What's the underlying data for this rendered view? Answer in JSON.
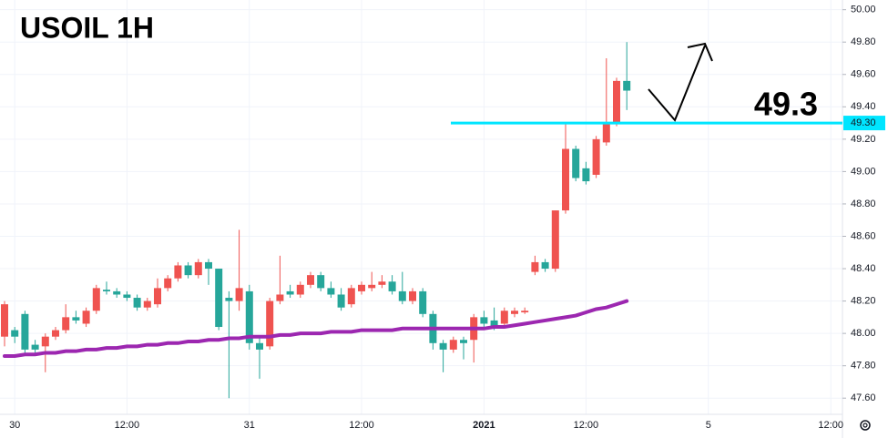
{
  "chart_data": {
    "type": "candlestick",
    "title": "USOIL 1H",
    "annotation": "49.3",
    "up_color": "#ef5350",
    "down_color": "#26a69a",
    "ma_color": "#9c27b0",
    "grid": true,
    "level": {
      "value": 49.3,
      "label": "49.30",
      "color": "#00e5ff"
    },
    "ylim": [
      47.5,
      50.06
    ],
    "yticks": [
      {
        "value": 47.6,
        "label": "47.60"
      },
      {
        "value": 47.8,
        "label": "47.80"
      },
      {
        "value": 48.0,
        "label": "48.00"
      },
      {
        "value": 48.2,
        "label": "48.20"
      },
      {
        "value": 48.4,
        "label": "48.40"
      },
      {
        "value": 48.6,
        "label": "48.60"
      },
      {
        "value": 48.8,
        "label": "48.80"
      },
      {
        "value": 49.0,
        "label": "49.00"
      },
      {
        "value": 49.2,
        "label": "49.20"
      },
      {
        "value": 49.4,
        "label": "49.40"
      },
      {
        "value": 49.6,
        "label": "49.60"
      },
      {
        "value": 49.8,
        "label": "49.80"
      },
      {
        "value": 50.0,
        "label": "50.00"
      }
    ],
    "categories": [
      null,
      "30",
      null,
      null,
      null,
      null,
      null,
      null,
      null,
      null,
      null,
      null,
      "12:00",
      null,
      null,
      null,
      null,
      null,
      null,
      null,
      null,
      null,
      null,
      null,
      "31",
      null,
      null,
      null,
      null,
      null,
      null,
      null,
      null,
      null,
      null,
      "12:00",
      null,
      null,
      null,
      null,
      null,
      null,
      null,
      null,
      null,
      null,
      null,
      "2021",
      null,
      null,
      null,
      null,
      null,
      null,
      null,
      null,
      null,
      "12:00",
      null,
      null,
      null,
      null,
      null,
      null,
      null,
      null,
      null,
      null,
      null,
      "5",
      null,
      null,
      null,
      null,
      null,
      null,
      null,
      null,
      null,
      null,
      null,
      "12:00"
    ],
    "ohlc": [
      [
        47.98,
        48.2,
        47.92,
        48.18
      ],
      [
        48.02,
        48.04,
        47.94,
        47.98
      ],
      [
        48.12,
        48.14,
        47.88,
        47.9
      ],
      [
        47.93,
        47.96,
        47.88,
        47.9
      ],
      [
        47.92,
        48.0,
        47.76,
        47.98
      ],
      [
        47.98,
        48.04,
        47.96,
        48.02
      ],
      [
        48.02,
        48.18,
        48.0,
        48.1
      ],
      [
        48.1,
        48.14,
        48.06,
        48.08
      ],
      [
        48.06,
        48.16,
        48.04,
        48.14
      ],
      [
        48.14,
        48.3,
        48.12,
        48.28
      ],
      [
        48.27,
        48.32,
        48.24,
        48.26
      ],
      [
        48.26,
        48.28,
        48.22,
        48.24
      ],
      [
        48.24,
        48.26,
        48.2,
        48.22
      ],
      [
        48.22,
        48.24,
        48.14,
        48.16
      ],
      [
        48.16,
        48.22,
        48.14,
        48.2
      ],
      [
        48.18,
        48.34,
        48.16,
        48.28
      ],
      [
        48.28,
        48.36,
        48.26,
        48.34
      ],
      [
        48.34,
        48.44,
        48.32,
        48.42
      ],
      [
        48.42,
        48.44,
        48.34,
        48.36
      ],
      [
        48.36,
        48.46,
        48.34,
        48.44
      ],
      [
        48.44,
        48.46,
        48.3,
        48.4
      ],
      [
        48.4,
        48.4,
        48.02,
        48.04
      ],
      [
        48.22,
        48.26,
        47.6,
        48.2
      ],
      [
        48.2,
        48.64,
        48.14,
        48.28
      ],
      [
        48.26,
        48.3,
        47.9,
        47.94
      ],
      [
        47.94,
        47.98,
        47.72,
        47.9
      ],
      [
        47.92,
        48.22,
        47.9,
        48.2
      ],
      [
        48.2,
        48.48,
        48.18,
        48.24
      ],
      [
        48.26,
        48.3,
        48.22,
        48.24
      ],
      [
        48.24,
        48.32,
        48.22,
        48.3
      ],
      [
        48.3,
        48.38,
        48.28,
        48.36
      ],
      [
        48.36,
        48.38,
        48.26,
        48.28
      ],
      [
        48.28,
        48.32,
        48.22,
        48.24
      ],
      [
        48.24,
        48.28,
        48.14,
        48.16
      ],
      [
        48.18,
        48.3,
        48.16,
        48.28
      ],
      [
        48.26,
        48.32,
        48.24,
        48.3
      ],
      [
        48.28,
        48.38,
        48.26,
        48.3
      ],
      [
        48.3,
        48.36,
        48.28,
        48.32
      ],
      [
        48.32,
        48.36,
        48.24,
        48.26
      ],
      [
        48.26,
        48.38,
        48.18,
        48.2
      ],
      [
        48.2,
        48.28,
        48.18,
        48.26
      ],
      [
        48.26,
        48.28,
        48.1,
        48.12
      ],
      [
        48.12,
        48.14,
        47.9,
        47.94
      ],
      [
        47.94,
        47.96,
        47.76,
        47.9
      ],
      [
        47.9,
        47.98,
        47.88,
        47.96
      ],
      [
        47.96,
        47.98,
        47.84,
        47.94
      ],
      [
        47.96,
        48.12,
        47.82,
        48.1
      ],
      [
        48.1,
        48.14,
        48.04,
        48.06
      ],
      [
        48.08,
        48.16,
        48.02,
        48.04
      ],
      [
        48.06,
        48.16,
        48.04,
        48.14
      ],
      [
        48.12,
        48.16,
        48.1,
        48.14
      ],
      [
        48.13,
        48.16,
        48.12,
        48.14
      ],
      [
        48.38,
        48.48,
        48.36,
        48.44
      ],
      [
        48.44,
        48.46,
        48.38,
        48.4
      ],
      [
        48.4,
        48.76,
        48.38,
        48.76
      ],
      [
        48.76,
        49.3,
        48.74,
        49.14
      ],
      [
        49.14,
        49.16,
        48.94,
        48.96
      ],
      [
        49.02,
        49.06,
        48.92,
        48.94
      ],
      [
        48.98,
        49.22,
        48.96,
        49.2
      ],
      [
        49.18,
        49.7,
        49.16,
        49.3
      ],
      [
        49.3,
        49.58,
        49.28,
        49.56
      ],
      [
        49.56,
        49.8,
        49.38,
        49.5
      ],
      null,
      null,
      null,
      null,
      null,
      null,
      null,
      null,
      null,
      null,
      null,
      null,
      null,
      null,
      null,
      null,
      null,
      null,
      null,
      null
    ],
    "ma": [
      47.86,
      47.86,
      47.87,
      47.87,
      47.88,
      47.88,
      47.89,
      47.89,
      47.9,
      47.9,
      47.91,
      47.91,
      47.92,
      47.92,
      47.93,
      47.93,
      47.94,
      47.94,
      47.95,
      47.95,
      47.96,
      47.96,
      47.97,
      47.97,
      47.98,
      47.98,
      47.98,
      47.99,
      47.99,
      48.0,
      48.0,
      48.0,
      48.01,
      48.01,
      48.01,
      48.02,
      48.02,
      48.02,
      48.02,
      48.03,
      48.03,
      48.03,
      48.03,
      48.03,
      48.03,
      48.03,
      48.03,
      48.03,
      48.04,
      48.04,
      48.05,
      48.06,
      48.07,
      48.08,
      48.09,
      48.1,
      48.11,
      48.13,
      48.15,
      48.16,
      48.18,
      48.2,
      null,
      null,
      null,
      null,
      null,
      null,
      null,
      null,
      null,
      null,
      null,
      null,
      null,
      null,
      null,
      null,
      null,
      null,
      null,
      null
    ]
  }
}
